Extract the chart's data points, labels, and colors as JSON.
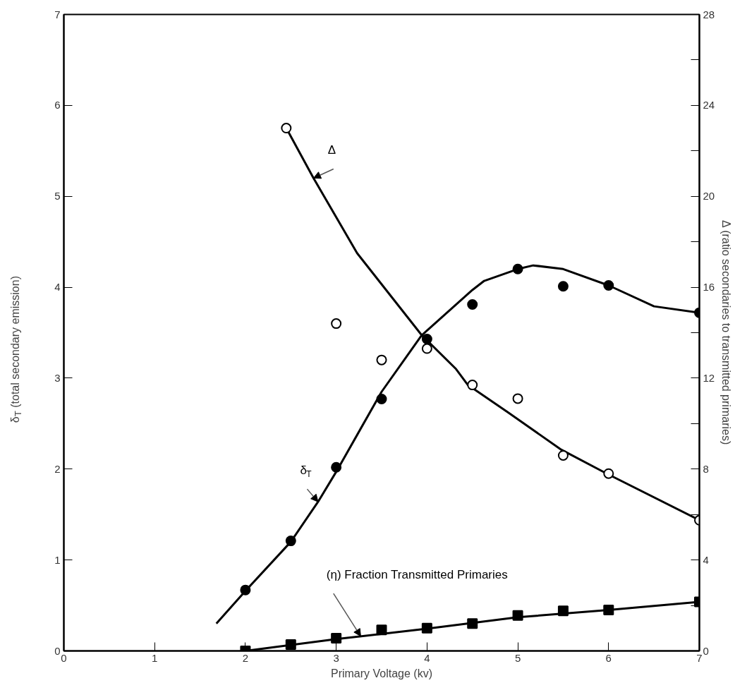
{
  "chart_data": {
    "type": "line",
    "xlabel": "Primary Voltage (kv)",
    "ylabel": "δ$_{T}$ (total secondary emission)",
    "y2label": "Δ (ratio secondaries to transmitted primaries)",
    "xlim": [
      0,
      7
    ],
    "xticks": [
      0,
      1,
      2,
      3,
      4,
      5,
      6,
      7
    ],
    "ylim": [
      0,
      7
    ],
    "yticks": [
      0,
      1,
      2,
      3,
      4,
      5,
      6,
      7
    ],
    "y2lim": [
      0,
      28
    ],
    "y2ticks": [
      0,
      {
        "value": 2,
        "label": null
      },
      4,
      {
        "value": 6,
        "label": null
      },
      8,
      {
        "value": 10,
        "label": null
      },
      12,
      {
        "value": 14,
        "label": null
      },
      16,
      {
        "value": 18,
        "label": null
      },
      20,
      {
        "value": 22,
        "label": null
      },
      24,
      {
        "value": 26,
        "label": null
      },
      28
    ],
    "series": [
      {
        "name": "δ$_{T}$",
        "color": "#000000",
        "x": [
          1.68,
          2.0,
          2.5,
          2.8,
          3.0,
          3.5,
          3.94,
          4.5,
          4.63,
          5.0,
          5.17,
          5.5,
          6.0,
          6.5,
          7.0
        ],
        "values": [
          0.3,
          0.66,
          1.2,
          1.64,
          1.97,
          2.85,
          3.47,
          3.97,
          4.07,
          4.2,
          4.24,
          4.2,
          4.02,
          3.79,
          3.72
        ]
      },
      {
        "type": "scatter",
        "marker": "circle",
        "color": "#000000",
        "x": [
          2.0,
          2.5,
          3.0,
          3.5,
          4.0,
          4.5,
          5.0,
          5.5,
          6.0,
          7.0
        ],
        "values": [
          0.67,
          1.21,
          2.02,
          2.77,
          3.43,
          3.81,
          4.2,
          4.01,
          4.02,
          3.72
        ]
      },
      {
        "name": "Δ",
        "axis": "y2",
        "color": "#000000",
        "x": [
          2.45,
          2.75,
          3.23,
          3.94,
          4.32,
          4.45,
          4.89,
          5.48,
          5.98,
          7.0
        ],
        "values": [
          23.0,
          20.8,
          17.5,
          13.9,
          12.4,
          11.7,
          10.5,
          8.85,
          7.8,
          5.75
        ]
      },
      {
        "type": "scatter",
        "marker": "circle",
        "axis": "y2",
        "color": "#ffffff",
        "x": [
          2.45,
          3.0,
          3.5,
          4.0,
          4.5,
          5.0,
          5.5,
          6.0,
          7.0
        ],
        "values": [
          23.0,
          14.4,
          12.8,
          13.3,
          11.7,
          11.1,
          8.6,
          7.8,
          5.75
        ]
      },
      {
        "name": "(η) Fraction Transmitted Primaries",
        "color": "#000000",
        "x": [
          2.0,
          3.0,
          4.0,
          5.0,
          6.0,
          7.0
        ],
        "values": [
          0.0,
          0.13,
          0.245,
          0.37,
          0.45,
          0.54
        ]
      },
      {
        "type": "scatter",
        "marker": "square",
        "color": "#000000",
        "x": [
          2.0,
          2.5,
          3.0,
          3.5,
          4.0,
          4.5,
          5.0,
          5.5,
          6.0,
          7.0
        ],
        "values": [
          0.0,
          0.07,
          0.14,
          0.23,
          0.25,
          0.3,
          0.39,
          0.44,
          0.45,
          0.54
        ]
      }
    ]
  }
}
